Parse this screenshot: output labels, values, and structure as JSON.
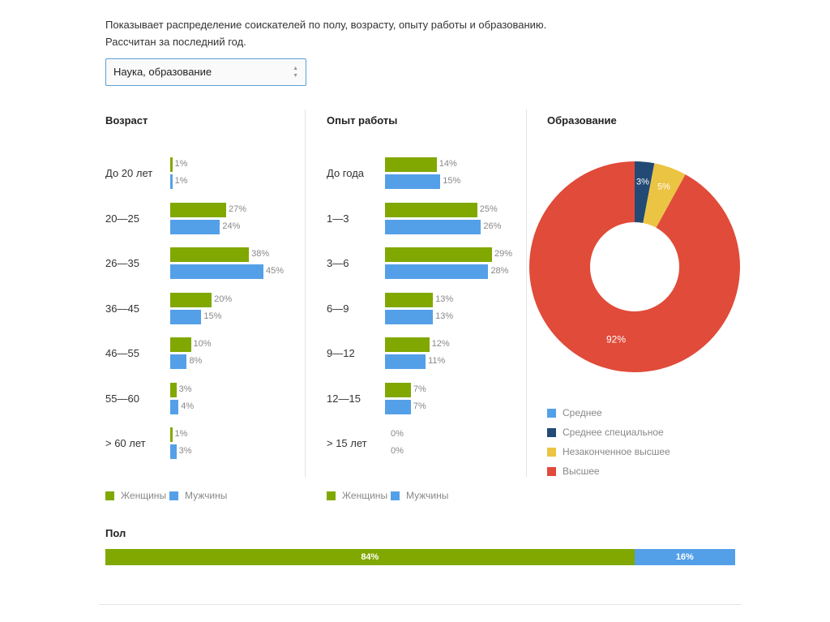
{
  "description": [
    "Показывает распределение соискателей по полу, возрасту, опыту работы и образованию.",
    "Рассчитан за последний год."
  ],
  "select": {
    "value": "Наука, образование"
  },
  "colors": {
    "women": "#80a800",
    "men": "#54a0e8",
    "srednee": "#54a0e8",
    "srednee_spec": "#234a74",
    "nezak": "#ecc443",
    "vysshee": "#e04b3a"
  },
  "legend": {
    "women": "Женщины",
    "men": "Мужчины"
  },
  "chart_data": [
    {
      "type": "bar",
      "title": "Возраст",
      "categories": [
        "До 20 лет",
        "20—25",
        "26—35",
        "36—45",
        "46—55",
        "55—60",
        "> 60 лет"
      ],
      "series": [
        {
          "name": "Женщины",
          "values": [
            1,
            27,
            38,
            20,
            10,
            3,
            1
          ]
        },
        {
          "name": "Мужчины",
          "values": [
            1,
            24,
            45,
            15,
            8,
            4,
            3
          ]
        }
      ],
      "max": 45
    },
    {
      "type": "bar",
      "title": "Опыт работы",
      "categories": [
        "До года",
        "1—3",
        "3—6",
        "6—9",
        "9—12",
        "12—15",
        "> 15 лет"
      ],
      "series": [
        {
          "name": "Женщины",
          "values": [
            14,
            25,
            29,
            13,
            12,
            7,
            0
          ]
        },
        {
          "name": "Мужчины",
          "values": [
            15,
            26,
            28,
            13,
            11,
            7,
            0
          ]
        }
      ],
      "max": 29
    },
    {
      "type": "pie",
      "title": "Образование",
      "labels": [
        "Среднее",
        "Среднее специальное",
        "Незаконченное высшее",
        "Высшее"
      ],
      "values": [
        0,
        3,
        5,
        92
      ]
    },
    {
      "type": "bar",
      "title": "Пол",
      "categories": [
        "Женщины",
        "Мужчины"
      ],
      "values": [
        84,
        16
      ]
    }
  ]
}
